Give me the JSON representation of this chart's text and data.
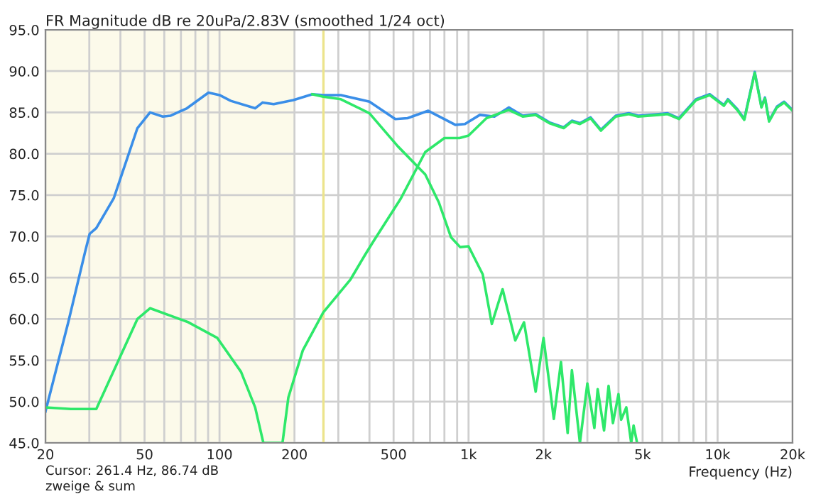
{
  "chart_data": {
    "type": "line",
    "title": "FR Magnitude dB re 20uPa/2.83V (smoothed 1/24 oct)",
    "xlabel": "Frequency (Hz)",
    "log": "x",
    "grid": true,
    "legend": false,
    "marker": "none",
    "line_style": "solid",
    "xlim": [
      20,
      20000
    ],
    "ylim": [
      45,
      95
    ],
    "xticks": [
      20,
      {
        "value": 30,
        "label": null
      },
      {
        "value": 40,
        "label": null
      },
      50,
      {
        "value": 60,
        "label": null
      },
      {
        "value": 70,
        "label": null
      },
      {
        "value": 80,
        "label": null
      },
      {
        "value": 90,
        "label": null
      },
      100,
      200,
      {
        "value": 300,
        "label": null
      },
      {
        "value": 400,
        "label": null
      },
      500,
      {
        "value": 600,
        "label": null
      },
      {
        "value": 700,
        "label": null
      },
      {
        "value": 800,
        "label": null
      },
      {
        "value": 900,
        "label": null
      },
      {
        "value": 1000,
        "label": "1k"
      },
      {
        "value": 2000,
        "label": "2k"
      },
      {
        "value": 3000,
        "label": null
      },
      {
        "value": 4000,
        "label": null
      },
      {
        "value": 5000,
        "label": "5k"
      },
      {
        "value": 6000,
        "label": null
      },
      {
        "value": 7000,
        "label": null
      },
      {
        "value": 8000,
        "label": null
      },
      {
        "value": 9000,
        "label": null
      },
      {
        "value": 10000,
        "label": "10k"
      },
      {
        "value": 20000,
        "label": "20k"
      }
    ],
    "yticks": [
      {
        "value": 45,
        "label": "45.0"
      },
      {
        "value": 50,
        "label": "50.0"
      },
      {
        "value": 55,
        "label": "55.0"
      },
      {
        "value": 60,
        "label": "60.0"
      },
      {
        "value": 65,
        "label": "65.0"
      },
      {
        "value": 70,
        "label": "70.0"
      },
      {
        "value": 75,
        "label": "75.0"
      },
      {
        "value": 80,
        "label": "80.0"
      },
      {
        "value": 85,
        "label": "85.0"
      },
      {
        "value": 90,
        "label": "90.0"
      },
      {
        "value": 95,
        "label": "95.0"
      }
    ],
    "series": [
      {
        "color": "#3a8ee8",
        "x": [
          20,
          24.7,
          28.9,
          30.1,
          32,
          37.6,
          46.8,
          52.6,
          59.2,
          63.5,
          74,
          90.3,
          100,
          111,
          139,
          149,
          165,
          198,
          236,
          261,
          307,
          400,
          508,
          569,
          689,
          885,
          967,
          1110,
          1270,
          1450,
          1650,
          1860,
          2110,
          2410,
          2600,
          2800,
          3090,
          3400,
          3900,
          4400,
          4800,
          5800,
          6300,
          7000,
          8200,
          9300,
          10600,
          11000,
          12000,
          12800,
          14100,
          15000,
          15500,
          16100,
          17300,
          18500,
          20000
        ],
        "values": [
          48.8,
          59.6,
          68.2,
          70.3,
          71,
          74.6,
          83.1,
          85,
          84.5,
          84.6,
          85.5,
          87.4,
          87.1,
          86.4,
          85.5,
          86.2,
          86,
          86.5,
          87.2,
          87.1,
          87.1,
          86.3,
          84.2,
          84.3,
          85.2,
          83.5,
          83.6,
          84.7,
          84.5,
          85.6,
          84.6,
          84.8,
          83.8,
          83.2,
          84,
          83.7,
          84.4,
          82.9,
          84.6,
          84.9,
          84.6,
          84.8,
          84.9,
          84.3,
          86.6,
          87.2,
          85.9,
          86.6,
          85.4,
          84.2,
          89.9,
          85.7,
          86.8,
          84,
          85.7,
          86.3,
          85.3
        ]
      },
      {
        "color": "#2ee86a",
        "x": [
          236,
          261,
          307,
          400,
          520,
          670,
          760,
          850,
          925,
          1000,
          1140,
          1240,
          1370,
          1540,
          1670,
          1860,
          2000,
          2200,
          2350,
          2500,
          2600,
          2800,
          3000,
          3200,
          3300,
          3500,
          3650,
          3800,
          4000,
          4100,
          4300,
          4500,
          4600,
          4750
        ],
        "values": [
          87.2,
          86.9,
          86.6,
          84.9,
          80.9,
          77.5,
          74.1,
          69.9,
          68.7,
          68.8,
          65.4,
          59.4,
          63.6,
          57.4,
          59.6,
          51.2,
          57.7,
          47.9,
          54.8,
          46.2,
          53.8,
          45,
          52.2,
          46.8,
          51.5,
          46.5,
          51.9,
          47.4,
          50.9,
          47.8,
          49.3,
          45,
          47.1,
          45
        ]
      },
      {
        "color": "#2ee86a",
        "x": [
          20,
          25.3,
          32,
          46.8,
          52.6,
          75,
          98,
          122,
          139,
          150,
          179,
          189,
          216,
          261,
          336,
          383,
          415,
          535,
          670,
          800,
          920,
          1000,
          1180,
          1450,
          1650,
          1860,
          2110,
          2410,
          2600,
          2800,
          3090,
          3400,
          3900,
          4400,
          4800,
          5800,
          6300,
          7000,
          8200,
          9300,
          10600,
          11000,
          12000,
          12800,
          14100,
          15000,
          15500,
          16100,
          17300,
          18500,
          20000
        ],
        "values": [
          49.3,
          49.1,
          49.1,
          60,
          61.3,
          59.6,
          57.7,
          53.6,
          49.3,
          45,
          45,
          50.5,
          56.2,
          60.8,
          64.8,
          67.7,
          69.4,
          74.6,
          80.2,
          81.9,
          81.9,
          82.2,
          84.3,
          85.3,
          84.5,
          84.7,
          83.7,
          83.1,
          83.9,
          83.6,
          84.3,
          82.8,
          84.5,
          84.8,
          84.5,
          84.7,
          84.8,
          84.2,
          86.5,
          87.1,
          85.8,
          86.5,
          85.3,
          84.1,
          89.8,
          85.6,
          86.7,
          83.9,
          85.6,
          86.2,
          85.2
        ]
      }
    ],
    "ref_lines": [
      {
        "axis": "x",
        "value": 261.4,
        "color": "#ece48c"
      }
    ],
    "bands": [
      {
        "axis": "x",
        "from": 20,
        "to": 200,
        "color": "#ece48c"
      }
    ],
    "annotations": [
      "Cursor: 261.4 Hz, 86.74 dB",
      "zweige & sum"
    ]
  }
}
